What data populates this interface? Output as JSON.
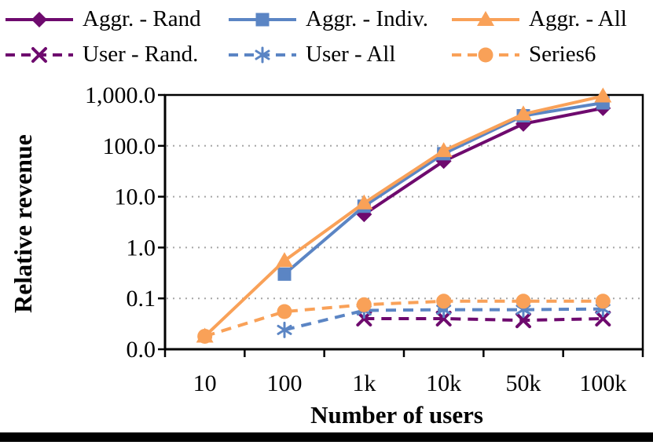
{
  "page": {
    "background_color": "#ffffff",
    "footer_bar_color": "#000000",
    "axis_color": "#000000",
    "gridline_color": "#a6a6a6"
  },
  "chart_data": {
    "type": "line",
    "title": "",
    "x_axis": {
      "label": "Number of users",
      "categories": [
        "10",
        "100",
        "1k",
        "10k",
        "50k",
        "100k"
      ],
      "scale": "categorical"
    },
    "y_axis": {
      "label": "Relative revenue",
      "scale": "log",
      "tick_labels": [
        "1,000.0",
        "100.0",
        "10.0",
        "1.0",
        "0.1",
        "0.0"
      ],
      "tick_values": [
        1000,
        100,
        10,
        1,
        0.1,
        0.01
      ],
      "range": [
        0.01,
        1000
      ],
      "gridlines": "dotted-horizontal"
    },
    "legend": {
      "position": "top",
      "rows": 2,
      "columns": 3
    },
    "series": [
      {
        "name": "Aggr. - Rand",
        "color": "#6e0a6e",
        "line": "solid",
        "marker": "diamond",
        "values": [
          null,
          null,
          4.5,
          50,
          270,
          550
        ]
      },
      {
        "name": "Aggr. - Indiv.",
        "color": "#5b85c4",
        "line": "solid",
        "marker": "square",
        "values": [
          null,
          0.3,
          6.5,
          70,
          390,
          700
        ]
      },
      {
        "name": "Aggr. - All",
        "color": "#f9a158",
        "line": "solid",
        "marker": "triangle",
        "values": [
          0.018,
          0.55,
          7.5,
          80,
          420,
          950
        ]
      },
      {
        "name": "User - Rand.",
        "color": "#6e0a6e",
        "line": "dashed",
        "marker": "x",
        "values": [
          null,
          null,
          0.04,
          0.04,
          0.037,
          0.04
        ]
      },
      {
        "name": "User - All",
        "color": "#5b85c4",
        "line": "dashed",
        "marker": "star",
        "values": [
          null,
          0.024,
          0.058,
          0.06,
          0.06,
          0.062
        ]
      },
      {
        "name": "Series6",
        "color": "#f9a158",
        "line": "dashed",
        "marker": "circle",
        "values": [
          0.018,
          0.055,
          0.075,
          0.088,
          0.088,
          0.088
        ]
      }
    ]
  }
}
